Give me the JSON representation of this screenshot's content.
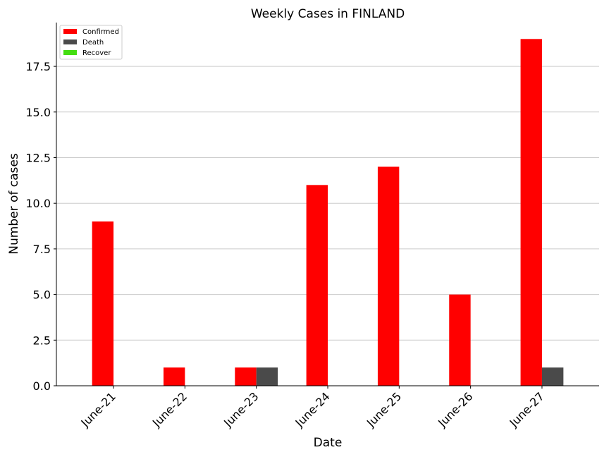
{
  "chart_data": {
    "type": "bar",
    "title": "Weekly Cases in FINLAND",
    "xlabel": "Date",
    "ylabel": "Number of cases",
    "categories": [
      "June-21",
      "June-22",
      "June-23",
      "June-24",
      "June-25",
      "June-26",
      "June-27"
    ],
    "series": [
      {
        "name": "Confirmed",
        "color": "#ff0000",
        "values": [
          9,
          1,
          1,
          11,
          12,
          5,
          19
        ]
      },
      {
        "name": "Death",
        "color": "#4a4a4a",
        "values": [
          0,
          0,
          1,
          0,
          0,
          0,
          1
        ]
      },
      {
        "name": "Recover",
        "color": "#44dd11",
        "values": [
          0,
          0,
          0,
          0,
          0,
          0,
          0
        ]
      }
    ],
    "ylim": [
      0,
      19.9
    ],
    "yticks": [
      0.0,
      2.5,
      5.0,
      7.5,
      10.0,
      12.5,
      15.0,
      17.5
    ],
    "ytick_labels": [
      "0.0",
      "2.5",
      "5.0",
      "7.5",
      "10.0",
      "12.5",
      "15.0",
      "17.5"
    ],
    "grid": "horizontal",
    "legend": "top-left",
    "xtick_rotation": "45deg"
  }
}
